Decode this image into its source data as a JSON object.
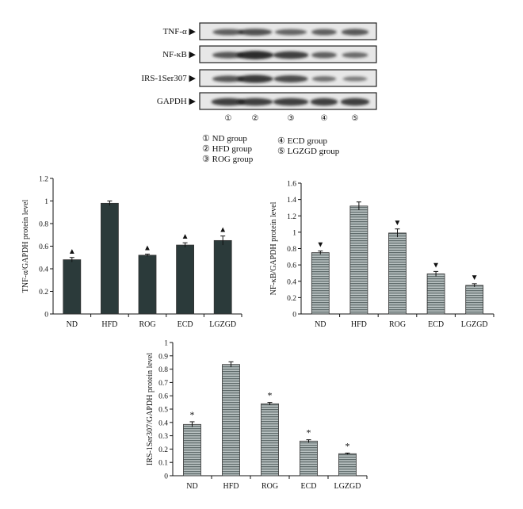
{
  "blot": {
    "rows": [
      {
        "label": "TNF-α ▶",
        "intensities": [
          0.55,
          0.65,
          0.5,
          0.55,
          0.6
        ]
      },
      {
        "label": "NF-κB ▶",
        "intensities": [
          0.6,
          0.95,
          0.8,
          0.55,
          0.45
        ]
      },
      {
        "label": "IRS-1Ser307 ▶",
        "intensities": [
          0.6,
          0.85,
          0.7,
          0.4,
          0.3
        ]
      },
      {
        "label": "GAPDH ▶",
        "intensities": [
          0.8,
          0.8,
          0.8,
          0.8,
          0.8
        ]
      }
    ],
    "lane_numbers": [
      "①",
      "②",
      "③",
      "④",
      "⑤"
    ],
    "legend": [
      "① ND group",
      "② HFD group",
      "③ ROG group",
      "④ ECD group",
      "⑤ LGZGD group"
    ]
  },
  "colors": {
    "dark_bar": "#2b3a3a",
    "hatched_bar": "#8a9696",
    "axis": "#111111",
    "blot_bg": "#e7e7e7",
    "band": "#1a1a1a"
  },
  "chart_data": [
    {
      "type": "bar",
      "title": "",
      "xlabel": "",
      "ylabel": "TNF-α/GAPDH protein level",
      "categories": [
        "ND",
        "HFD",
        "ROG",
        "ECD",
        "LGZGD"
      ],
      "values": [
        0.48,
        0.98,
        0.52,
        0.61,
        0.65
      ],
      "errors": [
        0.02,
        0.02,
        0.01,
        0.02,
        0.04
      ],
      "markers": [
        "▲",
        "",
        "▲",
        "▲",
        "▲"
      ],
      "ylim": [
        0,
        1.2
      ],
      "yticks": [
        "0",
        "0.2",
        "0.4",
        "0.6",
        "0.8",
        "1",
        "1.2"
      ],
      "style": "dark"
    },
    {
      "type": "bar",
      "title": "",
      "xlabel": "",
      "ylabel": "NF-κB/GAPDH protein level",
      "categories": [
        "ND",
        "HFD",
        "ROG",
        "ECD",
        "LGZGD"
      ],
      "values": [
        0.75,
        1.32,
        0.99,
        0.49,
        0.35
      ],
      "errors": [
        0.02,
        0.05,
        0.05,
        0.03,
        0.02
      ],
      "markers": [
        "▼",
        "",
        "▼",
        "▼",
        "▼"
      ],
      "ylim": [
        0,
        1.6
      ],
      "yticks": [
        "0",
        "0.2",
        "0.4",
        "0.6",
        "0.8",
        "1",
        "1.2",
        "1.4",
        "1.6"
      ],
      "style": "hatched"
    },
    {
      "type": "bar",
      "title": "",
      "xlabel": "",
      "ylabel": "IRS-1Ser307/GAPDH protein level",
      "categories": [
        "ND",
        "HFD",
        "ROG",
        "ECD",
        "LGZGD"
      ],
      "values": [
        0.385,
        0.835,
        0.54,
        0.26,
        0.165
      ],
      "errors": [
        0.02,
        0.02,
        0.01,
        0.01,
        0.005
      ],
      "markers": [
        "*",
        "",
        "*",
        "*",
        "*"
      ],
      "ylim": [
        0,
        1
      ],
      "yticks": [
        "0",
        "0.1",
        "0.2",
        "0.3",
        "0.4",
        "0.5",
        "0.6",
        "0.7",
        "0.8",
        "0.9",
        "1"
      ],
      "style": "hatched"
    }
  ]
}
